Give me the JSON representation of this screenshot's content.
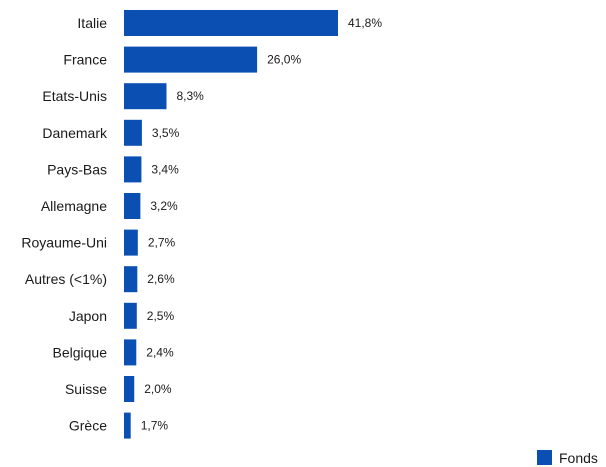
{
  "chart_data": {
    "type": "bar",
    "orientation": "horizontal",
    "categories": [
      "Italie",
      "France",
      "Etats-Unis",
      "Danemark",
      "Pays-Bas",
      "Allemagne",
      "Royaume-Uni",
      "Autres (<1%)",
      "Japon",
      "Belgique",
      "Suisse",
      "Grèce"
    ],
    "series": [
      {
        "name": "Fonds",
        "values": [
          41.8,
          26.0,
          8.3,
          3.5,
          3.4,
          3.2,
          2.7,
          2.6,
          2.5,
          2.4,
          2.0,
          1.7
        ],
        "labels": [
          "41,8%",
          "26,0%",
          "8,3%",
          "3,5%",
          "3,4%",
          "3,2%",
          "2,7%",
          "2,6%",
          "2,5%",
          "2,4%",
          "2,0%",
          "1,7%"
        ],
        "color": "#0b4fb3"
      }
    ],
    "xlim": [
      0,
      41.8
    ],
    "grid": false,
    "legend_position": "bottom-right"
  }
}
